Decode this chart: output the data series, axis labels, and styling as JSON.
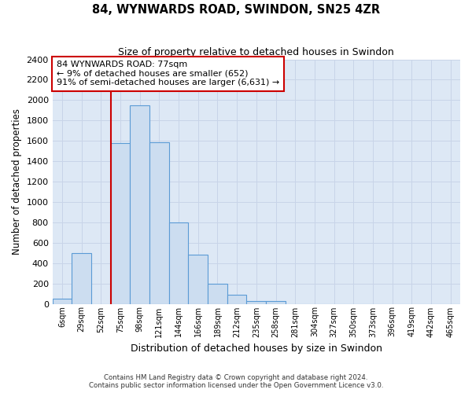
{
  "title": "84, WYNWARDS ROAD, SWINDON, SN25 4ZR",
  "subtitle": "Size of property relative to detached houses in Swindon",
  "xlabel": "Distribution of detached houses by size in Swindon",
  "ylabel": "Number of detached properties",
  "footer_line1": "Contains HM Land Registry data © Crown copyright and database right 2024.",
  "footer_line2": "Contains public sector information licensed under the Open Government Licence v3.0.",
  "categories": [
    "6sqm",
    "29sqm",
    "52sqm",
    "75sqm",
    "98sqm",
    "121sqm",
    "144sqm",
    "166sqm",
    "189sqm",
    "212sqm",
    "235sqm",
    "258sqm",
    "281sqm",
    "304sqm",
    "327sqm",
    "350sqm",
    "373sqm",
    "396sqm",
    "419sqm",
    "442sqm",
    "465sqm"
  ],
  "values": [
    50,
    500,
    0,
    1580,
    1950,
    1590,
    800,
    480,
    195,
    90,
    30,
    25,
    0,
    0,
    0,
    0,
    0,
    0,
    0,
    0,
    0
  ],
  "bar_color": "#ccddf0",
  "bar_edge_color": "#5b9bd5",
  "vline_color": "#cc0000",
  "vline_index": 2.5,
  "annotation_text": "84 WYNWARDS ROAD: 77sqm\n← 9% of detached houses are smaller (652)\n91% of semi-detached houses are larger (6,631) →",
  "annotation_box_color": "#ffffff",
  "annotation_box_edge": "#cc0000",
  "ylim": [
    0,
    2400
  ],
  "yticks": [
    0,
    200,
    400,
    600,
    800,
    1000,
    1200,
    1400,
    1600,
    1800,
    2000,
    2200,
    2400
  ],
  "grid_color": "#c8d4e8",
  "background_color": "#dde8f5"
}
